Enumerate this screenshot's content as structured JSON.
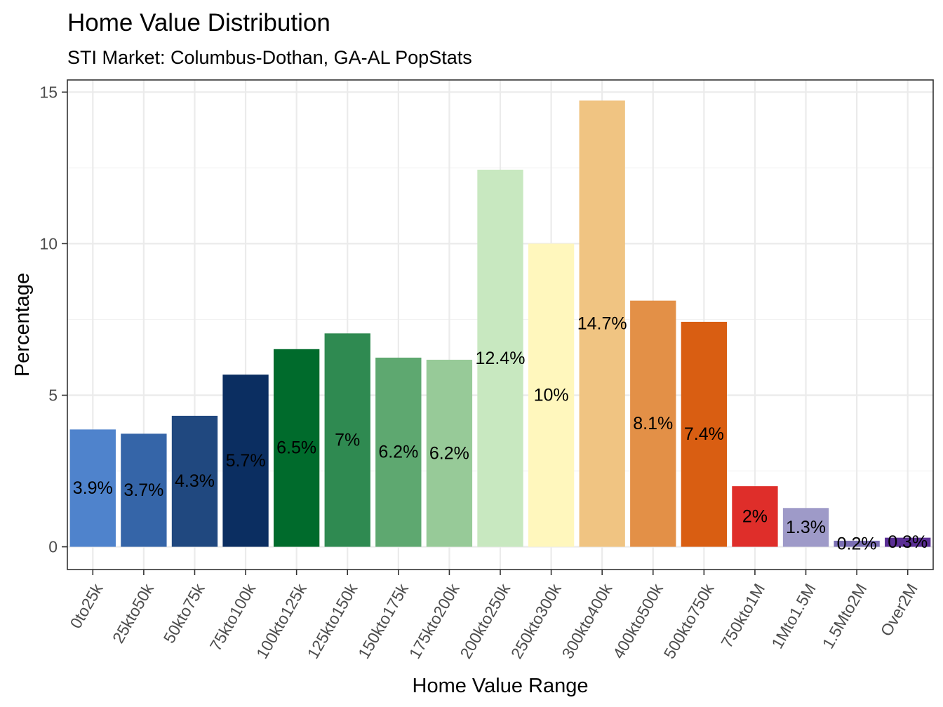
{
  "chart_data": {
    "type": "bar",
    "title": "Home Value Distribution",
    "subtitle": "STI Market: Columbus-Dothan,  GA-AL PopStats",
    "xlabel": "Home Value Range",
    "ylabel": "Percentage",
    "ylim": [
      -0.75,
      15.4
    ],
    "yticks": [
      0,
      5,
      10,
      15
    ],
    "ytick_labels": [
      "0",
      "5",
      "10",
      "15"
    ],
    "grid": true,
    "legend": "none",
    "categories": [
      "0to25k",
      "25kto50k",
      "50kto75k",
      "75kto100k",
      "100kto125k",
      "125kto150k",
      "150kto175k",
      "175kto200k",
      "200kto250k",
      "250kto300k",
      "300kto400k",
      "400kto500k",
      "500kto750k",
      "750kto1M",
      "1Mto1.5M",
      "1.5Mto2M",
      "Over2M"
    ],
    "values": [
      3.87,
      3.73,
      4.32,
      5.68,
      6.52,
      7.04,
      6.24,
      6.17,
      12.44,
      10.0,
      14.72,
      8.12,
      7.42,
      2.0,
      1.28,
      0.2,
      0.3
    ],
    "labels": [
      "3.9%",
      "3.7%",
      "4.3%",
      "5.7%",
      "6.5%",
      "7%",
      "6.2%",
      "6.2%",
      "12.4%",
      "10%",
      "14.7%",
      "8.1%",
      "7.4%",
      "2%",
      "1.3%",
      "0.2%",
      "0.3%"
    ],
    "colors": [
      "#4f83cc",
      "#3565a8",
      "#20487f",
      "#0b2e61",
      "#006b2c",
      "#2f8a51",
      "#5ea870",
      "#97ca98",
      "#c8e8c0",
      "#fff7bd",
      "#f0c482",
      "#e39047",
      "#d95e12",
      "#df2e2a",
      "#9e9ac8",
      "#7b6fb4",
      "#5a2e94"
    ]
  }
}
